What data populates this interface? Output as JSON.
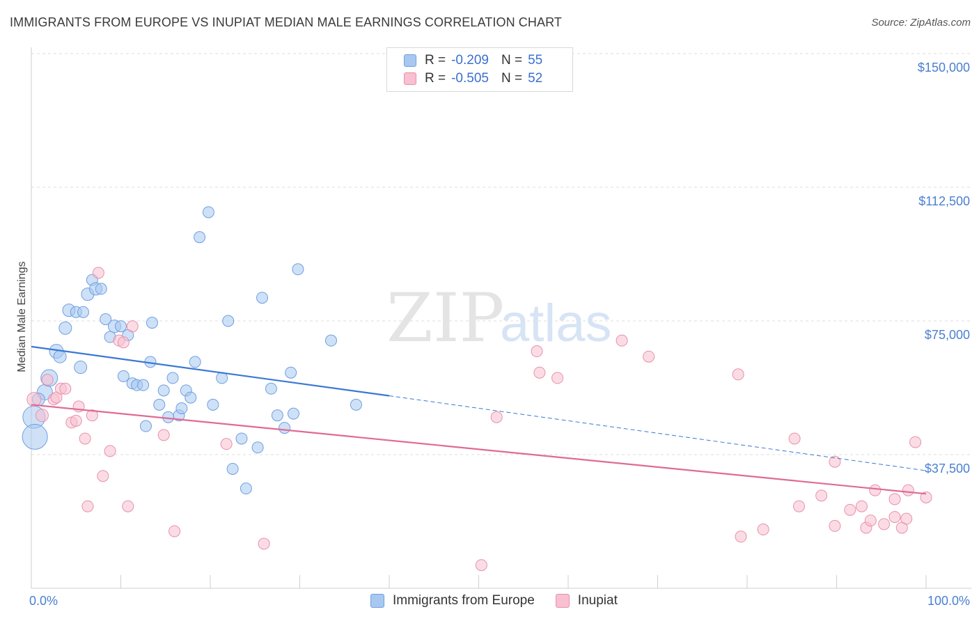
{
  "title": "IMMIGRANTS FROM EUROPE VS INUPIAT MEDIAN MALE EARNINGS CORRELATION CHART",
  "source": "Source: ZipAtlas.com",
  "watermark": {
    "zip": "ZIP",
    "atlas": "atlas"
  },
  "legend": {
    "rows": [
      {
        "r_label": "R =",
        "r_value": "-0.209",
        "n_label": "N =",
        "n_value": "55",
        "color": "#a8c8f0",
        "border": "#6d9fe0"
      },
      {
        "r_label": "R =",
        "r_value": "-0.505",
        "n_label": "N =",
        "n_value": "52",
        "color": "#f8c0d0",
        "border": "#e890aa"
      }
    ]
  },
  "bottom_legend": [
    {
      "label": "Immigrants from Europe",
      "color": "#a8c8f0",
      "border": "#6d9fe0"
    },
    {
      "label": "Inupiat",
      "color": "#f8c0d0",
      "border": "#e890aa"
    }
  ],
  "chart_data": {
    "type": "scatter",
    "ylabel": "Median Male Earnings",
    "xlim": [
      0,
      100
    ],
    "ylim": [
      0,
      150000
    ],
    "x_tick_labels": [
      "0.0%",
      "100.0%"
    ],
    "y_ticks": [
      {
        "value": 150000,
        "label": "$150,000"
      },
      {
        "value": 112500,
        "label": "$112,500"
      },
      {
        "value": 75000,
        "label": "$75,000"
      },
      {
        "value": 37500,
        "label": "$37,500"
      }
    ],
    "grid": "horizontal dashed",
    "series": [
      {
        "name": "Immigrants from Europe",
        "color": "#6d9fe0",
        "fill": "#a8c8f0",
        "trend": {
          "x0": 0,
          "y0": 67800,
          "x1": 40,
          "y1": 54000,
          "dash_to_x": 100,
          "dash_to_y": 33000
        },
        "points": [
          [
            0.3,
            48000,
            16
          ],
          [
            0.4,
            42500,
            18
          ],
          [
            1.5,
            55000,
            11
          ],
          [
            2.0,
            59000,
            12
          ],
          [
            2.8,
            66500,
            10
          ],
          [
            3.2,
            65000,
            9
          ],
          [
            3.8,
            73000,
            9
          ],
          [
            4.2,
            78000,
            9
          ],
          [
            5.0,
            77500,
            8
          ],
          [
            5.5,
            62000,
            9
          ],
          [
            5.8,
            77500,
            8
          ],
          [
            6.3,
            82500,
            9
          ],
          [
            6.8,
            86500,
            8
          ],
          [
            7.2,
            84000,
            9
          ],
          [
            7.8,
            84000,
            8
          ],
          [
            8.3,
            75500,
            8
          ],
          [
            8.8,
            70500,
            8
          ],
          [
            9.3,
            73500,
            9
          ],
          [
            10.0,
            73500,
            8
          ],
          [
            10.3,
            59500,
            8
          ],
          [
            10.8,
            71000,
            8
          ],
          [
            11.3,
            57500,
            8
          ],
          [
            11.8,
            57000,
            8
          ],
          [
            12.5,
            57000,
            8
          ],
          [
            12.8,
            45500,
            8
          ],
          [
            13.3,
            63500,
            8
          ],
          [
            13.5,
            74500,
            8
          ],
          [
            14.3,
            51500,
            8
          ],
          [
            14.8,
            55500,
            8
          ],
          [
            15.3,
            48000,
            8
          ],
          [
            15.8,
            59000,
            8
          ],
          [
            16.5,
            48500,
            8
          ],
          [
            16.8,
            50500,
            8
          ],
          [
            17.3,
            55500,
            8
          ],
          [
            17.8,
            53500,
            8
          ],
          [
            18.3,
            63500,
            8
          ],
          [
            18.8,
            98500,
            8
          ],
          [
            19.8,
            105500,
            8
          ],
          [
            20.3,
            51500,
            8
          ],
          [
            21.3,
            59000,
            8
          ],
          [
            22.0,
            75000,
            8
          ],
          [
            22.5,
            33500,
            8
          ],
          [
            23.5,
            42000,
            8
          ],
          [
            24.0,
            28000,
            8
          ],
          [
            25.3,
            39500,
            8
          ],
          [
            25.8,
            81500,
            8
          ],
          [
            26.8,
            56000,
            8
          ],
          [
            27.5,
            48500,
            8
          ],
          [
            28.3,
            45000,
            8
          ],
          [
            29.0,
            60500,
            8
          ],
          [
            29.3,
            49000,
            8
          ],
          [
            29.8,
            89500,
            8
          ],
          [
            33.5,
            69500,
            8
          ],
          [
            36.3,
            51500,
            8
          ],
          [
            0.8,
            53000,
            9
          ]
        ]
      },
      {
        "name": "Inupiat",
        "color": "#e890aa",
        "fill": "#f8c0d0",
        "trend": {
          "x0": 0,
          "y0": 51500,
          "x1": 100,
          "y1": 26500
        },
        "points": [
          [
            0.3,
            53000,
            10
          ],
          [
            1.2,
            48500,
            9
          ],
          [
            1.8,
            58500,
            8
          ],
          [
            2.5,
            53000,
            8
          ],
          [
            2.8,
            53500,
            8
          ],
          [
            3.3,
            56000,
            8
          ],
          [
            3.8,
            56000,
            8
          ],
          [
            4.5,
            46500,
            8
          ],
          [
            5.0,
            47000,
            8
          ],
          [
            5.3,
            51000,
            8
          ],
          [
            6.0,
            42000,
            8
          ],
          [
            6.3,
            23000,
            8
          ],
          [
            6.8,
            48500,
            8
          ],
          [
            7.5,
            88500,
            8
          ],
          [
            8.0,
            31500,
            8
          ],
          [
            8.8,
            38500,
            8
          ],
          [
            9.8,
            69500,
            8
          ],
          [
            10.3,
            69000,
            8
          ],
          [
            10.8,
            23000,
            8
          ],
          [
            11.3,
            73500,
            8
          ],
          [
            14.8,
            43000,
            8
          ],
          [
            16.0,
            16000,
            8
          ],
          [
            21.8,
            40500,
            8
          ],
          [
            26.0,
            12500,
            8
          ],
          [
            50.3,
            6500,
            8
          ],
          [
            52.0,
            48000,
            8
          ],
          [
            56.5,
            66500,
            8
          ],
          [
            56.8,
            60500,
            8
          ],
          [
            58.8,
            59000,
            8
          ],
          [
            66.0,
            69500,
            8
          ],
          [
            69.0,
            65000,
            8
          ],
          [
            79.0,
            60000,
            8
          ],
          [
            79.3,
            14500,
            8
          ],
          [
            81.8,
            16500,
            8
          ],
          [
            85.3,
            42000,
            8
          ],
          [
            85.8,
            23000,
            8
          ],
          [
            88.3,
            26000,
            8
          ],
          [
            89.8,
            35500,
            8
          ],
          [
            89.8,
            17500,
            8
          ],
          [
            91.5,
            22000,
            8
          ],
          [
            92.8,
            23000,
            8
          ],
          [
            93.3,
            17000,
            8
          ],
          [
            93.8,
            19000,
            8
          ],
          [
            94.3,
            27500,
            8
          ],
          [
            95.3,
            18000,
            8
          ],
          [
            96.5,
            20000,
            8
          ],
          [
            96.5,
            25000,
            8
          ],
          [
            97.3,
            17000,
            8
          ],
          [
            97.8,
            19500,
            8
          ],
          [
            98.0,
            27500,
            8
          ],
          [
            98.8,
            41000,
            8
          ],
          [
            100.0,
            25500,
            8
          ]
        ]
      }
    ]
  }
}
